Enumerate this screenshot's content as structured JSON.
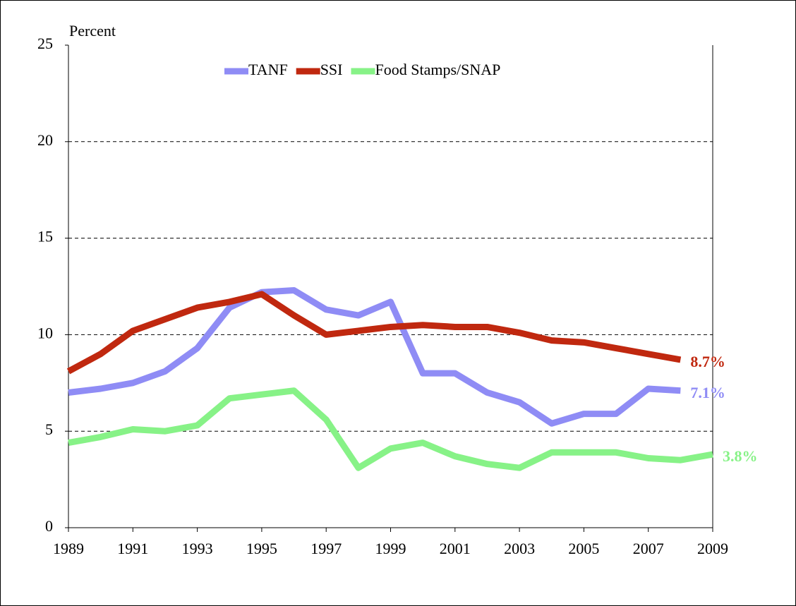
{
  "chart_data": {
    "type": "line",
    "y_label": "Percent",
    "x": [
      1989,
      1990,
      1991,
      1992,
      1993,
      1994,
      1995,
      1996,
      1997,
      1998,
      1999,
      2000,
      2001,
      2002,
      2003,
      2004,
      2005,
      2006,
      2007,
      2008,
      2009
    ],
    "series": [
      {
        "name": "TANF",
        "color": "#8f8cf5",
        "values": [
          7.0,
          7.2,
          7.5,
          8.1,
          9.3,
          11.4,
          12.2,
          12.3,
          11.3,
          11.0,
          11.7,
          8.0,
          8.0,
          7.0,
          6.5,
          5.4,
          5.9,
          5.9,
          7.2,
          7.1,
          null
        ],
        "value_labels": [
          null,
          null,
          null,
          null,
          null,
          null,
          null,
          null,
          null,
          null,
          null,
          null,
          null,
          null,
          null,
          null,
          null,
          null,
          null,
          "7.1%",
          null
        ]
      },
      {
        "name": "SSI",
        "color": "#c0280f",
        "values": [
          8.1,
          9.0,
          10.2,
          10.8,
          11.4,
          11.7,
          12.1,
          11.0,
          10.0,
          10.2,
          10.4,
          10.5,
          10.4,
          10.4,
          10.1,
          9.7,
          9.6,
          9.3,
          9.0,
          8.7,
          null
        ],
        "value_labels": [
          null,
          null,
          null,
          null,
          null,
          null,
          null,
          null,
          null,
          null,
          null,
          null,
          null,
          null,
          null,
          null,
          null,
          null,
          null,
          "8.7%",
          null
        ]
      },
      {
        "name": "Food Stamps/SNAP",
        "color": "#87f287",
        "values": [
          4.4,
          4.7,
          5.1,
          5.0,
          5.3,
          6.7,
          6.9,
          7.1,
          5.6,
          3.1,
          4.1,
          4.4,
          3.7,
          3.3,
          3.1,
          3.9,
          3.9,
          3.9,
          3.6,
          3.5,
          3.8
        ],
        "value_labels": [
          null,
          null,
          null,
          null,
          null,
          null,
          null,
          null,
          null,
          null,
          null,
          null,
          null,
          null,
          null,
          null,
          null,
          null,
          null,
          null,
          "3.8%"
        ]
      }
    ],
    "xlim": [
      1989,
      2009
    ],
    "xticks": [
      1989,
      1991,
      1993,
      1995,
      1997,
      1999,
      2001,
      2003,
      2005,
      2007,
      2009
    ],
    "ylim": [
      0,
      25
    ],
    "yticks": [
      0,
      5,
      10,
      15,
      20,
      25
    ],
    "grid": true,
    "legend": "top"
  }
}
